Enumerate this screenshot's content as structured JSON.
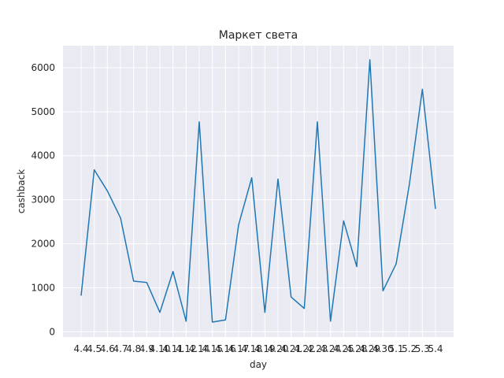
{
  "chart_data": {
    "type": "line",
    "title": "Маркет света",
    "xlabel": "day",
    "ylabel": "cashback",
    "categories": [
      "4.4",
      "4.5",
      "4.6",
      "4.7",
      "4.8",
      "4.9",
      "4.10",
      "4.11",
      "4.12",
      "4.14",
      "4.15",
      "4.16",
      "4.17",
      "4.18",
      "4.19",
      "4.20",
      "4.21",
      "4.22",
      "4.23",
      "4.24",
      "4.25",
      "4.28",
      "4.29",
      "4.30",
      "5.1",
      "5.2",
      "5.3",
      "5.4"
    ],
    "values": [
      820,
      3680,
      3200,
      2590,
      1150,
      1120,
      440,
      1370,
      240,
      4770,
      220,
      270,
      2430,
      3500,
      440,
      3470,
      790,
      530,
      4770,
      240,
      2520,
      1480,
      6180,
      930,
      1540,
      3330,
      5510,
      2790
    ],
    "ylim": [
      -120,
      6500
    ],
    "yticks": [
      0,
      1000,
      2000,
      3000,
      4000,
      5000,
      6000
    ],
    "grid": true,
    "line_color": "#1f77b4",
    "background_color": "#eaeaf2"
  }
}
